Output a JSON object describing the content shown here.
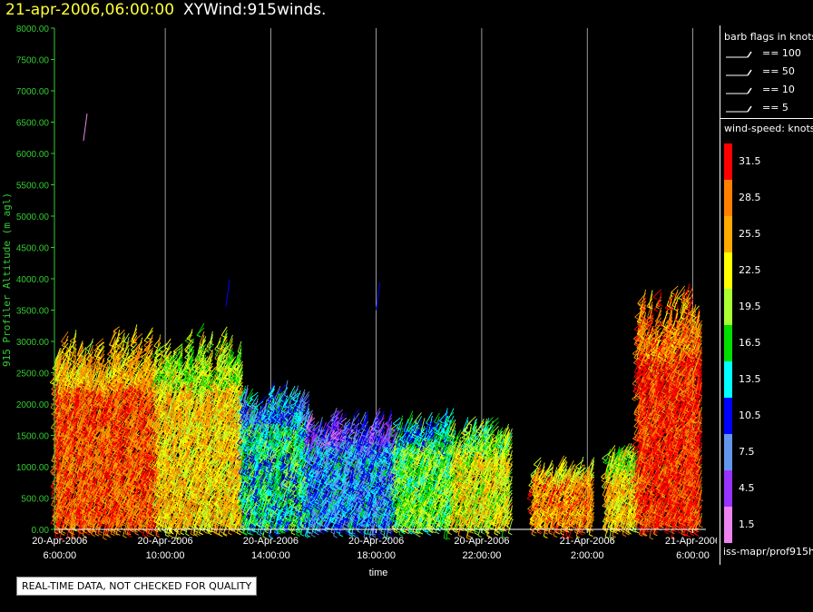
{
  "title": {
    "date": "21-apr-2006,06:00:00",
    "name": "XYWind:915winds."
  },
  "notice": "REAL-TIME DATA, NOT CHECKED FOR QUALITY",
  "source": "iss-mapr/prof915h",
  "colors": {
    "axis": "#33cc33",
    "grid": "#ffffff",
    "background": "#000000",
    "title_date": "#ffff33"
  },
  "legend": {
    "flags_title": "barb flags in knots",
    "flags": [
      "== 100",
      "== 50",
      "== 10",
      "== 5"
    ],
    "speed_title": "wind-speed: knots",
    "speed_bins": [
      {
        "label": "31.5",
        "color": "#ff0000"
      },
      {
        "label": "28.5",
        "color": "#ff7f00"
      },
      {
        "label": "25.5",
        "color": "#ffaa00"
      },
      {
        "label": "22.5",
        "color": "#ffff00"
      },
      {
        "label": "19.5",
        "color": "#aaff33"
      },
      {
        "label": "16.5",
        "color": "#00dd00"
      },
      {
        "label": "13.5",
        "color": "#00ffff"
      },
      {
        "label": "10.5",
        "color": "#0000ff"
      },
      {
        "label": "7.5",
        "color": "#6495ed"
      },
      {
        "label": "4.5",
        "color": "#9933ff"
      },
      {
        "label": "1.5",
        "color": "#ee82ee"
      }
    ]
  },
  "chart_data": {
    "type": "scatter",
    "xlabel": "time",
    "ylabel": "915 Profiler Altitude (m agl)",
    "ylim": [
      0,
      8000
    ],
    "yticks": [
      "0.00",
      "500.00",
      "1000.00",
      "1500.00",
      "2000.00",
      "2500.00",
      "3000.00",
      "3500.00",
      "4000.00",
      "4500.00",
      "5000.00",
      "5500.00",
      "6000.00",
      "6500.00",
      "7000.00",
      "7500.00",
      "8000.00"
    ],
    "xlim_hours": [
      -0.2,
      24.5
    ],
    "xticks": [
      {
        "date": "20-Apr-2006",
        "time": "6:00:00",
        "hour": 0
      },
      {
        "date": "20-Apr-2006",
        "time": "10:00:00",
        "hour": 4
      },
      {
        "date": "20-Apr-2006",
        "time": "14:00:00",
        "hour": 8
      },
      {
        "date": "20-Apr-2006",
        "time": "18:00:00",
        "hour": 12
      },
      {
        "date": "20-Apr-2006",
        "time": "22:00:00",
        "hour": 16
      },
      {
        "date": "21-Apr-2006",
        "time": "2:00:00",
        "hour": 20
      },
      {
        "date": "21-Apr-2006",
        "time": "6:00:00",
        "hour": 24
      }
    ],
    "grid": "vertical",
    "series": [
      {
        "segment": [
          -0.1,
          3.8
        ],
        "top_alt": 3000,
        "speed": 29
      },
      {
        "segment": [
          3.8,
          7.0
        ],
        "top_alt": 3000,
        "speed": 24
      },
      {
        "segment": [
          7.0,
          9.5
        ],
        "top_alt": 2200,
        "speed": 15
      },
      {
        "segment": [
          9.5,
          12.8
        ],
        "top_alt": 1800,
        "speed": 11
      },
      {
        "segment": [
          12.8,
          15.0
        ],
        "top_alt": 1800,
        "speed": 18
      },
      {
        "segment": [
          15.0,
          17.2
        ],
        "top_alt": 1700,
        "speed": 22
      },
      {
        "segment": [
          18.0,
          20.3
        ],
        "top_alt": 1100,
        "speed": 27
      },
      {
        "segment": [
          20.8,
          22.0
        ],
        "top_alt": 1300,
        "speed": 24
      },
      {
        "segment": [
          22.0,
          24.4
        ],
        "top_alt": 3600,
        "speed": 31
      }
    ]
  }
}
